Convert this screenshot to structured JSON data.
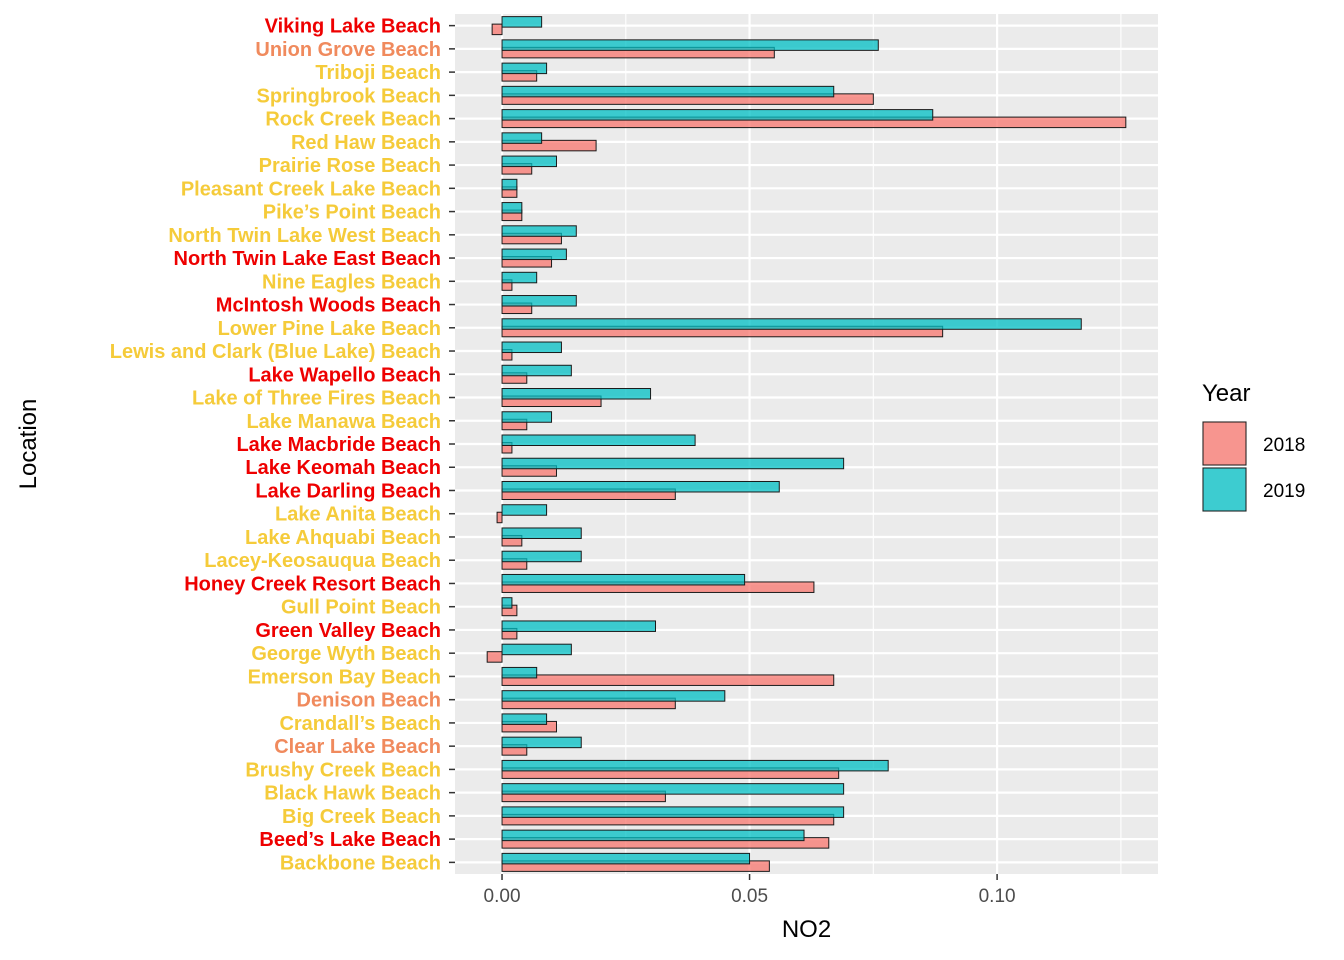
{
  "chart_data": {
    "type": "bar",
    "orientation": "horizontal",
    "xlabel": "NO2",
    "ylabel": "Location",
    "xlim": [
      -0.0095,
      0.1325
    ],
    "xticks": [
      0.0,
      0.05,
      0.1
    ],
    "xtick_labels": [
      "0.00",
      "0.05",
      "0.10"
    ],
    "grid": true,
    "legend": {
      "title": "Year",
      "position": "right",
      "entries": [
        {
          "label": "2018",
          "color": "#f8766d"
        },
        {
          "label": "2019",
          "color": "#00bfc4"
        }
      ]
    },
    "label_colors": {
      "red": "#ee0000",
      "salmon": "#f08a5d",
      "gold": "#f5cb3a"
    },
    "categories": [
      "Viking Lake Beach",
      "Union Grove Beach",
      "Triboji Beach",
      "Springbrook Beach",
      "Rock Creek Beach",
      "Red Haw Beach",
      "Prairie Rose Beach",
      "Pleasant Creek Lake Beach",
      "Pike’s Point Beach",
      "North Twin Lake West Beach",
      "North Twin Lake East Beach",
      "Nine Eagles Beach",
      "McIntosh Woods Beach",
      "Lower Pine Lake Beach",
      "Lewis and Clark (Blue Lake) Beach",
      "Lake Wapello Beach",
      "Lake of Three Fires Beach",
      "Lake Manawa Beach",
      "Lake Macbride Beach",
      "Lake Keomah Beach",
      "Lake Darling Beach",
      "Lake Anita Beach",
      "Lake Ahquabi Beach",
      "Lacey-Keosauqua Beach",
      "Honey Creek Resort Beach",
      "Gull Point Beach",
      "Green Valley Beach",
      "George Wyth Beach",
      "Emerson Bay Beach",
      "Denison Beach",
      "Crandall’s Beach",
      "Clear Lake Beach",
      "Brushy Creek Beach",
      "Black Hawk Beach",
      "Big Creek Beach",
      "Beed’s Lake Beach",
      "Backbone Beach"
    ],
    "category_colors": [
      "red",
      "salmon",
      "gold",
      "gold",
      "gold",
      "gold",
      "gold",
      "gold",
      "gold",
      "gold",
      "red",
      "gold",
      "red",
      "gold",
      "gold",
      "red",
      "gold",
      "gold",
      "red",
      "red",
      "red",
      "gold",
      "gold",
      "gold",
      "red",
      "gold",
      "red",
      "gold",
      "gold",
      "salmon",
      "gold",
      "salmon",
      "gold",
      "gold",
      "gold",
      "red",
      "gold"
    ],
    "series": [
      {
        "name": "2018",
        "color": "#f8766d",
        "values": [
          -0.002,
          0.055,
          0.007,
          0.075,
          0.126,
          0.019,
          0.006,
          0.003,
          0.004,
          0.012,
          0.01,
          0.002,
          0.006,
          0.089,
          0.002,
          0.005,
          0.02,
          0.005,
          0.002,
          0.011,
          0.035,
          -0.001,
          0.004,
          0.005,
          0.063,
          0.003,
          0.003,
          -0.003,
          0.067,
          0.035,
          0.011,
          0.005,
          0.068,
          0.033,
          0.067,
          0.066,
          0.054
        ]
      },
      {
        "name": "2019",
        "color": "#00bfc4",
        "values": [
          0.008,
          0.076,
          0.009,
          0.067,
          0.087,
          0.008,
          0.011,
          0.003,
          0.004,
          0.015,
          0.013,
          0.007,
          0.015,
          0.117,
          0.012,
          0.014,
          0.03,
          0.01,
          0.039,
          0.069,
          0.056,
          0.009,
          0.016,
          0.016,
          0.049,
          0.002,
          0.031,
          0.014,
          0.007,
          0.045,
          0.009,
          0.016,
          0.078,
          0.069,
          0.069,
          0.061,
          0.05
        ]
      }
    ]
  }
}
